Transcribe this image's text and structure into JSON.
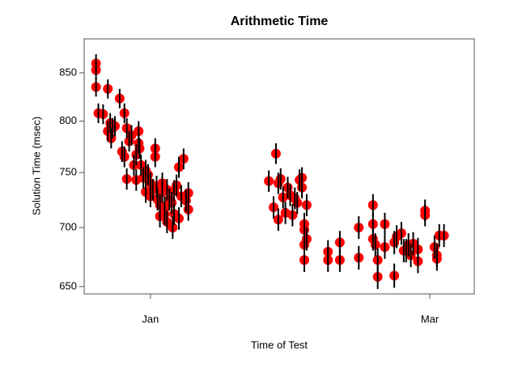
{
  "chart_data": {
    "type": "scatter",
    "title": "Arithmetic Time",
    "xlabel": "Time of Test",
    "ylabel": "Solution Time (msec)",
    "color": "#ff0000",
    "error_color": "#000000",
    "log_y": true,
    "error": 10,
    "xlim": [
      -14,
      68.4
    ],
    "ylim": [
      644,
      887
    ],
    "xticks": [
      {
        "value": 0,
        "label": "Jan"
      },
      {
        "value": 59,
        "label": "Mar"
      }
    ],
    "yticks": [
      650,
      700,
      750,
      800,
      850
    ],
    "x": [
      -11.5,
      -11.5,
      -11.5,
      -11,
      -10,
      -9,
      -9,
      -8.5,
      -8.3,
      -8,
      -7.5,
      -6.5,
      -6,
      -5.5,
      -5.5,
      -5,
      -5,
      -4.5,
      -4,
      -3.5,
      -3,
      -3,
      -2.5,
      -2.5,
      -2.3,
      -2,
      -1.5,
      -1,
      -1,
      -0.5,
      0,
      0,
      0.5,
      1,
      1,
      1.3,
      1.5,
      2,
      2,
      2.5,
      2.5,
      3,
      3,
      3.5,
      3.5,
      4,
      4.5,
      4.7,
      5,
      5,
      5.5,
      6,
      6,
      6.5,
      7,
      7.5,
      8,
      8,
      25,
      26,
      26.5,
      27,
      27,
      27.5,
      28,
      28.5,
      29,
      29.5,
      30,
      30.5,
      31,
      31.5,
      32,
      32,
      32.5,
      32.5,
      33,
      32.5,
      33,
      32.5,
      37.5,
      37.5,
      40,
      40,
      44,
      44,
      47,
      47,
      47,
      47.5,
      48,
      48,
      49.5,
      49.5,
      51.5,
      51.5,
      52,
      53,
      53.5,
      54,
      54.5,
      55,
      55.5,
      56.5,
      56.5,
      58,
      58,
      60,
      60.5,
      60.5,
      61,
      62
    ],
    "y": [
      860,
      853,
      835,
      808,
      807,
      833,
      790,
      798,
      783,
      793,
      795,
      823,
      770,
      808,
      765,
      793,
      744,
      780,
      786,
      757,
      767,
      743,
      790,
      778,
      773,
      757,
      745,
      752,
      732,
      748,
      740,
      728,
      734,
      773,
      765,
      737,
      725,
      720,
      710,
      740,
      732,
      718,
      712,
      705,
      734,
      725,
      722,
      700,
      733,
      712,
      738,
      708,
      755,
      728,
      763,
      724,
      731,
      716,
      742,
      718,
      768,
      740,
      707,
      744,
      727,
      713,
      736,
      729,
      711,
      726,
      722,
      743,
      736,
      745,
      703,
      698,
      720,
      685,
      690,
      672,
      679,
      672,
      687,
      672,
      700,
      674,
      720,
      703,
      690,
      685,
      658,
      672,
      703,
      683,
      659,
      687,
      692,
      695,
      680,
      680,
      685,
      676,
      686,
      681,
      671,
      715,
      711,
      683,
      676,
      673,
      693,
      693
    ]
  }
}
